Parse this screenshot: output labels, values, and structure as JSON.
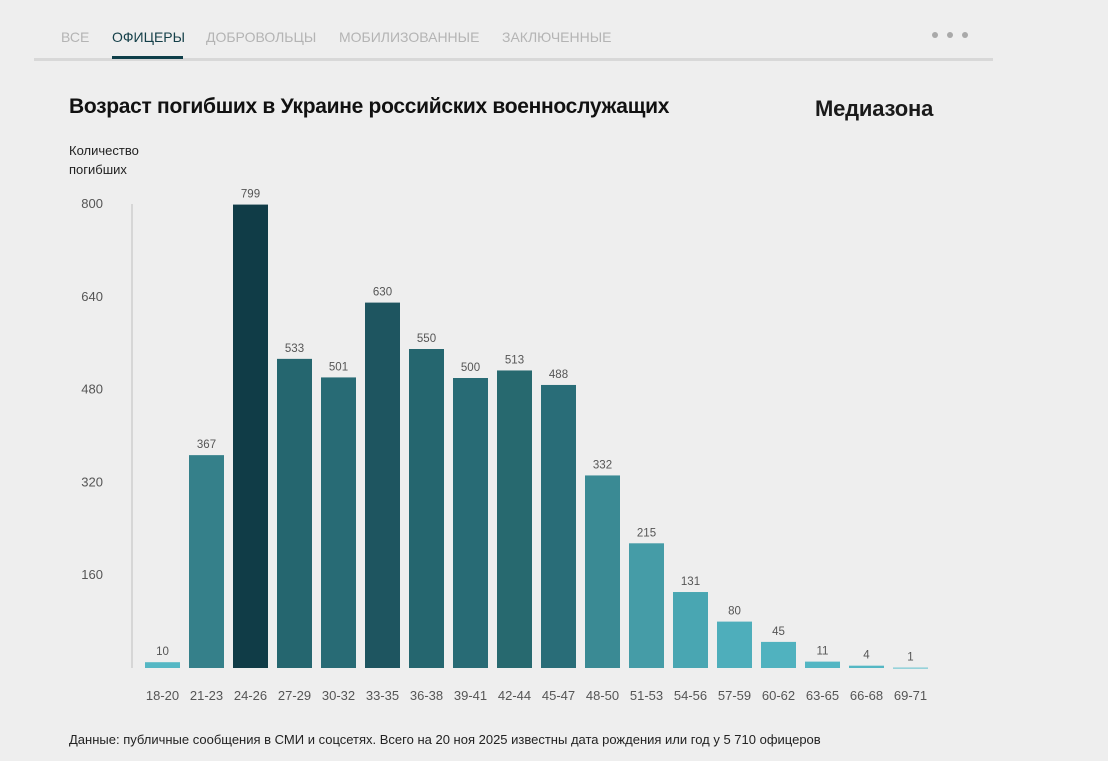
{
  "tabs": [
    {
      "label": "ВСЕ",
      "active": false
    },
    {
      "label": "ОФИЦЕРЫ",
      "active": true
    },
    {
      "label": "ДОБРОВОЛЬЦЫ",
      "active": false
    },
    {
      "label": "МОБИЛИЗОВАННЫЕ",
      "active": false
    },
    {
      "label": "ЗАКЛЮЧЕННЫЕ",
      "active": false
    }
  ],
  "brand": "Медиазона",
  "footer": "Данные: публичные сообщения в СМИ и соцсетях. Всего на 20 ноя 2025 известны дата рождения или год у 5 710 офицеров",
  "chart_data": {
    "type": "bar",
    "title": "Возраст погибших в Украине российских военнослужащих",
    "ylabel": "Количество погибших",
    "xlabel": "",
    "ylim": [
      0,
      800
    ],
    "yticks": [
      160,
      320,
      480,
      640,
      800
    ],
    "categories": [
      "18-20",
      "21-23",
      "24-26",
      "27-29",
      "30-32",
      "33-35",
      "36-38",
      "39-41",
      "42-44",
      "45-47",
      "48-50",
      "51-53",
      "54-56",
      "57-59",
      "60-62",
      "63-65",
      "66-68",
      "69-71"
    ],
    "values": [
      10,
      367,
      799,
      533,
      501,
      630,
      550,
      500,
      513,
      488,
      332,
      215,
      131,
      80,
      45,
      11,
      4,
      1
    ],
    "colors": [
      "#55b7c4",
      "#35808a",
      "#103c47",
      "#25666f",
      "#286b75",
      "#1e5560",
      "#25666f",
      "#286b75",
      "#27696f",
      "#296d78",
      "#3a8a94",
      "#459ca7",
      "#49a6b2",
      "#4eaebb",
      "#50b2bf",
      "#53b6c3",
      "#54b7c4",
      "#8fd0d8"
    ]
  }
}
